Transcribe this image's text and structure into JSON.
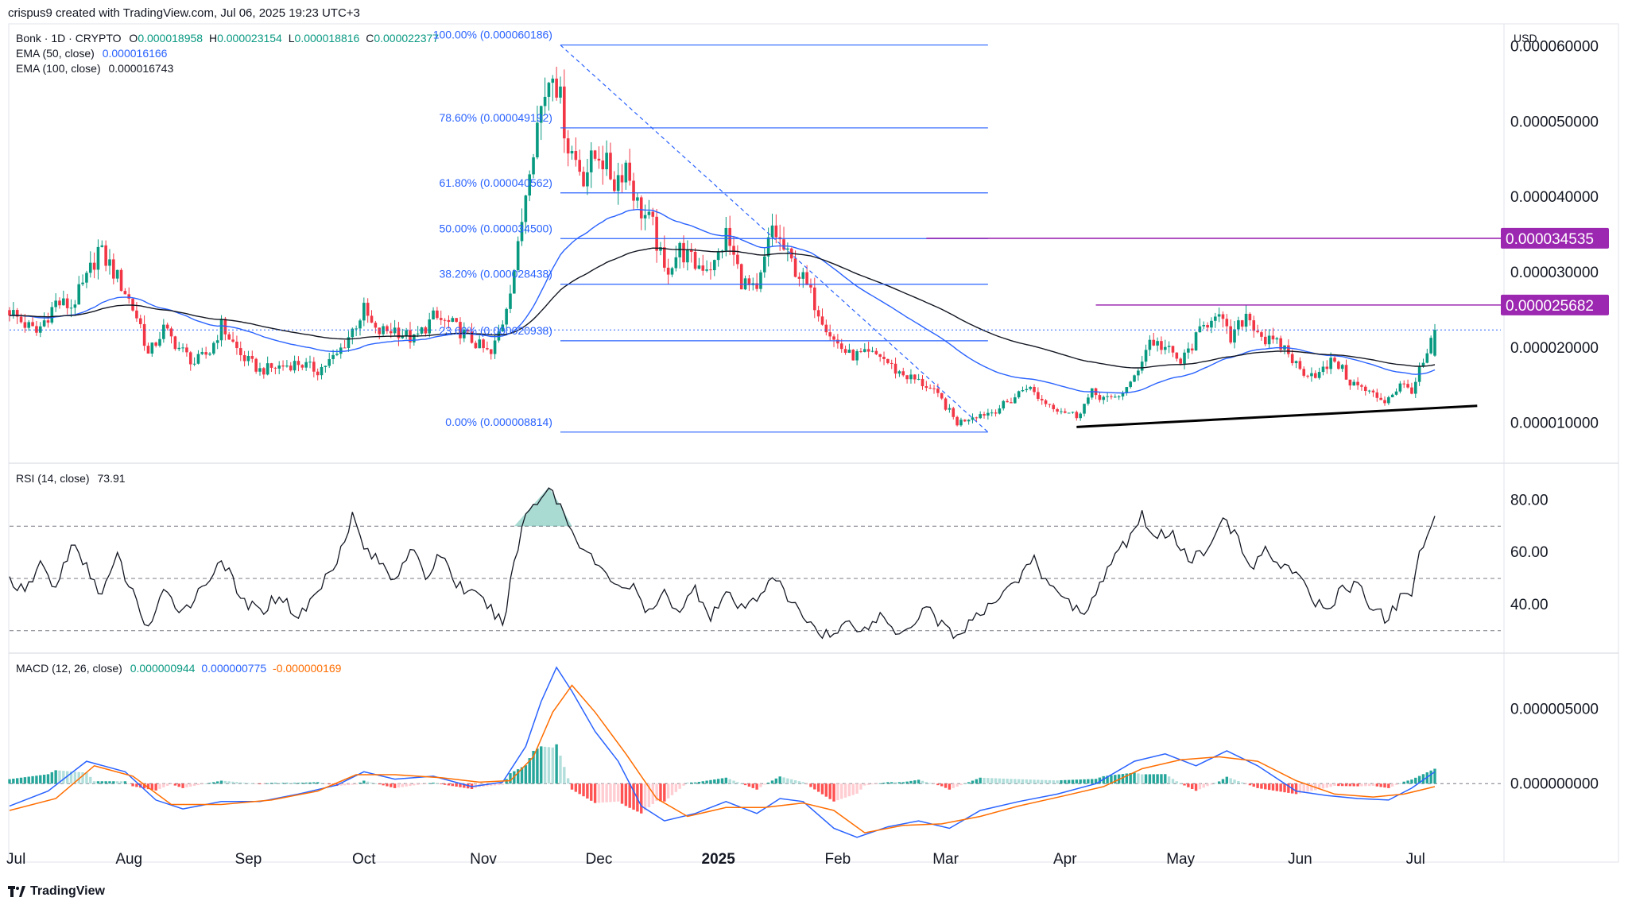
{
  "header": {
    "created_line": "crispus9 created with TradingView.com, Jul 06, 2025 19:23 UTC+3",
    "symbol": "Bonk · 1D · CRYPTO",
    "o_label": "O",
    "o": "0.000018958",
    "h_label": "H",
    "h": "0.000023154",
    "l_label": "L",
    "l": "0.000018816",
    "c_label": "C",
    "c": "0.000022377",
    "ema50_label": "EMA (50, close)",
    "ema50": "0.000016166",
    "ema100_label": "EMA (100, close)",
    "ema100": "0.000016743",
    "currency": "USD"
  },
  "footer": {
    "brand": "TradingView"
  },
  "colors": {
    "up": "#089981",
    "down": "#f23645",
    "ema50": "#2962ff",
    "ema100": "#131722",
    "fib": "#2962ff",
    "magenta": "#9c27b0",
    "macd": "#2962ff",
    "signal": "#ff6d00"
  },
  "chart_data": [
    {
      "type": "candlestick",
      "pane": "price",
      "y_range": [
        5e-06,
        6.3e-05
      ],
      "y_ticks": [
        "0.000060000",
        "0.000050000",
        "0.000040000",
        "0.000030000",
        "0.000020000",
        "0.000010000"
      ],
      "y_tick_values": [
        6e-05,
        5e-05,
        4e-05,
        3e-05,
        2e-05,
        1e-05
      ],
      "x_labels": [
        "Jul",
        "Aug",
        "Sep",
        "Oct",
        "Nov",
        "Dec",
        "2025",
        "Feb",
        "Mar",
        "Apr",
        "May",
        "Jun",
        "Jul"
      ],
      "x_label_days": [
        0,
        31,
        62,
        92,
        123,
        153,
        184,
        215,
        243,
        274,
        304,
        335,
        365
      ],
      "last_day": 370,
      "price_anchors": [
        [
          0,
          2.5e-05
        ],
        [
          3,
          2.35e-05
        ],
        [
          7,
          2.2e-05
        ],
        [
          12,
          2.6e-05
        ],
        [
          16,
          2.55e-05
        ],
        [
          20,
          2.9e-05
        ],
        [
          23,
          3.3e-05
        ],
        [
          26,
          3.1e-05
        ],
        [
          30,
          2.75e-05
        ],
        [
          34,
          2.3e-05
        ],
        [
          36,
          1.9e-05
        ],
        [
          40,
          2.25e-05
        ],
        [
          44,
          2e-05
        ],
        [
          48,
          1.8e-05
        ],
        [
          52,
          1.95e-05
        ],
        [
          55,
          2.3e-05
        ],
        [
          60,
          1.9e-05
        ],
        [
          65,
          1.7e-05
        ],
        [
          70,
          1.75e-05
        ],
        [
          75,
          1.8e-05
        ],
        [
          80,
          1.7e-05
        ],
        [
          85,
          1.9e-05
        ],
        [
          88,
          2.15e-05
        ],
        [
          92,
          2.5e-05
        ],
        [
          95,
          2.2e-05
        ],
        [
          100,
          2.25e-05
        ],
        [
          105,
          2.1e-05
        ],
        [
          110,
          2.4e-05
        ],
        [
          115,
          2.3e-05
        ],
        [
          120,
          2.1e-05
        ],
        [
          125,
          1.9e-05
        ],
        [
          128,
          2.35e-05
        ],
        [
          132,
          3.3e-05
        ],
        [
          135,
          4.5e-05
        ],
        [
          138,
          5.2e-05
        ],
        [
          141,
          5.8e-05
        ],
        [
          145,
          4.7e-05
        ],
        [
          149,
          4.3e-05
        ],
        [
          153,
          4.6e-05
        ],
        [
          157,
          4.2e-05
        ],
        [
          160,
          4.45e-05
        ],
        [
          163,
          3.9e-05
        ],
        [
          167,
          3.6e-05
        ],
        [
          170,
          3e-05
        ],
        [
          174,
          3.3e-05
        ],
        [
          178,
          3.1e-05
        ],
        [
          183,
          3.1e-05
        ],
        [
          186,
          3.5e-05
        ],
        [
          190,
          2.9e-05
        ],
        [
          194,
          2.7e-05
        ],
        [
          198,
          3.6e-05
        ],
        [
          202,
          3.2e-05
        ],
        [
          206,
          2.9e-05
        ],
        [
          210,
          2.5e-05
        ],
        [
          214,
          2.1e-05
        ],
        [
          218,
          1.9e-05
        ],
        [
          222,
          1.9e-05
        ],
        [
          226,
          1.9e-05
        ],
        [
          230,
          1.7e-05
        ],
        [
          234,
          1.6e-05
        ],
        [
          238,
          1.5e-05
        ],
        [
          242,
          1.3e-05
        ],
        [
          246,
          1e-05
        ],
        [
          250,
          1.1e-05
        ],
        [
          255,
          1.15e-05
        ],
        [
          260,
          1.3e-05
        ],
        [
          264,
          1.5e-05
        ],
        [
          268,
          1.3e-05
        ],
        [
          272,
          1.2e-05
        ],
        [
          277,
          1.1e-05
        ],
        [
          281,
          1.4e-05
        ],
        [
          286,
          1.3e-05
        ],
        [
          291,
          1.5e-05
        ],
        [
          296,
          2.1e-05
        ],
        [
          300,
          2e-05
        ],
        [
          304,
          1.8e-05
        ],
        [
          309,
          2.2e-05
        ],
        [
          313,
          2.5e-05
        ],
        [
          317,
          2.1e-05
        ],
        [
          321,
          2.45e-05
        ],
        [
          326,
          2.1e-05
        ],
        [
          331,
          2e-05
        ],
        [
          335,
          1.7e-05
        ],
        [
          340,
          1.65e-05
        ],
        [
          344,
          1.85e-05
        ],
        [
          348,
          1.55e-05
        ],
        [
          353,
          1.4e-05
        ],
        [
          357,
          1.3e-05
        ],
        [
          361,
          1.5e-05
        ],
        [
          364,
          1.45e-05
        ],
        [
          368,
          1.9e-05
        ],
        [
          370,
          2.24e-05
        ]
      ],
      "last_candle": {
        "open": 1.8958e-05,
        "high": 2.3154e-05,
        "low": 1.8816e-05,
        "close": 2.2377e-05
      },
      "ema50_last": 1.6166e-05,
      "ema100_last": 1.6743e-05,
      "fibonacci": {
        "start_day": 143,
        "end_day": 254,
        "high": 6.0186e-05,
        "low": 8.814e-06,
        "levels": [
          {
            "label": "100.00% (0.000060186)",
            "value": 6.0186e-05
          },
          {
            "label": "78.60% (0.000049192)",
            "value": 4.9192e-05
          },
          {
            "label": "61.80% (0.000040562)",
            "value": 4.0562e-05
          },
          {
            "label": "50.00% (0.000034500)",
            "value": 3.45e-05
          },
          {
            "label": "38.20% (0.000028438)",
            "value": 2.8438e-05
          },
          {
            "label": "23.60% (0.000020938)",
            "value": 2.0938e-05
          },
          {
            "label": "0.00% (0.000008814)",
            "value": 8.814e-06
          }
        ]
      },
      "horizontal_lines": [
        {
          "label": "0.000034535",
          "value": 3.4535e-05,
          "start_day": 238
        },
        {
          "label": "0.000025682",
          "value": 2.5682e-05,
          "start_day": 282
        }
      ],
      "trendline": {
        "day1": 277,
        "value1": 9.5e-06,
        "day2": 381,
        "value2": 1.23e-05
      }
    },
    {
      "type": "line",
      "pane": "rsi",
      "title": "RSI (14, close)",
      "current": "73.91",
      "y_range": [
        22,
        92
      ],
      "y_ticks": [
        "80.00",
        "60.00",
        "40.00"
      ],
      "y_tick_values": [
        80,
        60,
        40
      ],
      "bands": [
        70,
        50,
        30
      ],
      "points": [
        [
          0,
          50
        ],
        [
          4,
          44
        ],
        [
          8,
          56
        ],
        [
          12,
          46
        ],
        [
          16,
          63
        ],
        [
          20,
          54
        ],
        [
          24,
          44
        ],
        [
          28,
          58
        ],
        [
          32,
          44
        ],
        [
          36,
          31
        ],
        [
          40,
          44
        ],
        [
          45,
          38
        ],
        [
          50,
          46
        ],
        [
          55,
          58
        ],
        [
          60,
          42
        ],
        [
          65,
          37
        ],
        [
          70,
          44
        ],
        [
          75,
          35
        ],
        [
          80,
          45
        ],
        [
          85,
          58
        ],
        [
          89,
          74
        ],
        [
          92,
          62
        ],
        [
          96,
          56
        ],
        [
          100,
          50
        ],
        [
          104,
          62
        ],
        [
          108,
          50
        ],
        [
          112,
          60
        ],
        [
          116,
          48
        ],
        [
          120,
          44
        ],
        [
          124,
          40
        ],
        [
          128,
          32
        ],
        [
          131,
          56
        ],
        [
          134,
          75
        ],
        [
          137,
          80
        ],
        [
          140,
          85
        ],
        [
          143,
          78
        ],
        [
          146,
          68
        ],
        [
          150,
          60
        ],
        [
          154,
          52
        ],
        [
          158,
          48
        ],
        [
          162,
          46
        ],
        [
          166,
          36
        ],
        [
          170,
          44
        ],
        [
          174,
          38
        ],
        [
          178,
          46
        ],
        [
          182,
          36
        ],
        [
          186,
          44
        ],
        [
          190,
          38
        ],
        [
          194,
          42
        ],
        [
          198,
          52
        ],
        [
          202,
          42
        ],
        [
          206,
          36
        ],
        [
          210,
          30
        ],
        [
          214,
          28
        ],
        [
          218,
          34
        ],
        [
          222,
          30
        ],
        [
          226,
          36
        ],
        [
          230,
          30
        ],
        [
          234,
          32
        ],
        [
          238,
          40
        ],
        [
          242,
          32
        ],
        [
          246,
          28
        ],
        [
          250,
          34
        ],
        [
          254,
          38
        ],
        [
          258,
          46
        ],
        [
          262,
          50
        ],
        [
          266,
          57
        ],
        [
          270,
          46
        ],
        [
          274,
          44
        ],
        [
          278,
          36
        ],
        [
          282,
          44
        ],
        [
          286,
          56
        ],
        [
          290,
          64
        ],
        [
          294,
          74
        ],
        [
          298,
          66
        ],
        [
          302,
          68
        ],
        [
          306,
          57
        ],
        [
          310,
          60
        ],
        [
          314,
          72
        ],
        [
          318,
          68
        ],
        [
          322,
          54
        ],
        [
          326,
          60
        ],
        [
          330,
          56
        ],
        [
          334,
          52
        ],
        [
          338,
          42
        ],
        [
          342,
          38
        ],
        [
          346,
          46
        ],
        [
          350,
          48
        ],
        [
          354,
          38
        ],
        [
          358,
          34
        ],
        [
          362,
          46
        ],
        [
          364,
          44
        ],
        [
          366,
          58
        ],
        [
          368,
          66
        ],
        [
          370,
          74
        ]
      ]
    },
    {
      "type": "bar+line",
      "pane": "macd",
      "title": "MACD (12, 26, close)",
      "histogram_value": "0.000000944",
      "macd_value": "0.000000775",
      "signal_value": "-0.000000169",
      "y_range": [
        -4.2e-06,
        8.6e-06
      ],
      "y_ticks": [
        "0.000005000",
        "0.000000000"
      ],
      "y_tick_values": [
        5e-06,
        0.0
      ],
      "macd_points": [
        [
          0,
          -1.5e-06
        ],
        [
          10,
          -5e-07
        ],
        [
          20,
          1.5e-06
        ],
        [
          30,
          8e-07
        ],
        [
          38,
          -1.1e-06
        ],
        [
          45,
          -1.7e-06
        ],
        [
          55,
          -1.2e-06
        ],
        [
          65,
          -1.2e-06
        ],
        [
          75,
          -7e-07
        ],
        [
          85,
          -1e-07
        ],
        [
          92,
          8e-07
        ],
        [
          100,
          3e-07
        ],
        [
          110,
          5e-07
        ],
        [
          120,
          -2e-07
        ],
        [
          128,
          1e-07
        ],
        [
          134,
          2.5e-06
        ],
        [
          138,
          5.5e-06
        ],
        [
          142,
          7.8e-06
        ],
        [
          146,
          6.2e-06
        ],
        [
          152,
          3.5e-06
        ],
        [
          158,
          1.5e-06
        ],
        [
          164,
          -1.5e-06
        ],
        [
          170,
          -2.5e-06
        ],
        [
          178,
          -2e-06
        ],
        [
          186,
          -1.2e-06
        ],
        [
          194,
          -2e-06
        ],
        [
          200,
          -1e-06
        ],
        [
          206,
          -1.2e-06
        ],
        [
          214,
          -3e-06
        ],
        [
          220,
          -3.6e-06
        ],
        [
          228,
          -2.9e-06
        ],
        [
          236,
          -2.5e-06
        ],
        [
          244,
          -3e-06
        ],
        [
          252,
          -1.8e-06
        ],
        [
          262,
          -1.2e-06
        ],
        [
          272,
          -7e-07
        ],
        [
          282,
          0.0
        ],
        [
          292,
          1.5e-06
        ],
        [
          300,
          2e-06
        ],
        [
          308,
          1.2e-06
        ],
        [
          316,
          2.2e-06
        ],
        [
          324,
          1.2e-06
        ],
        [
          334,
          -5e-07
        ],
        [
          342,
          -8e-07
        ],
        [
          350,
          -1e-06
        ],
        [
          358,
          -1.1e-06
        ],
        [
          364,
          -3e-07
        ],
        [
          370,
          8e-07
        ]
      ],
      "signal_points": [
        [
          0,
          -1.8e-06
        ],
        [
          12,
          -1e-06
        ],
        [
          22,
          1.2e-06
        ],
        [
          32,
          5e-07
        ],
        [
          42,
          -1.4e-06
        ],
        [
          55,
          -1.4e-06
        ],
        [
          68,
          -1.1e-06
        ],
        [
          80,
          -5e-07
        ],
        [
          90,
          6e-07
        ],
        [
          100,
          6e-07
        ],
        [
          112,
          4e-07
        ],
        [
          122,
          1e-07
        ],
        [
          130,
          2e-07
        ],
        [
          136,
          1.8e-06
        ],
        [
          141,
          4.8e-06
        ],
        [
          146,
          6.6e-06
        ],
        [
          152,
          4.8e-06
        ],
        [
          160,
          2e-06
        ],
        [
          168,
          -1e-06
        ],
        [
          176,
          -2.2e-06
        ],
        [
          186,
          -1.6e-06
        ],
        [
          196,
          -1.6e-06
        ],
        [
          206,
          -1.3e-06
        ],
        [
          214,
          -1.8e-06
        ],
        [
          222,
          -3.3e-06
        ],
        [
          232,
          -2.8e-06
        ],
        [
          242,
          -2.7e-06
        ],
        [
          252,
          -2.2e-06
        ],
        [
          262,
          -1.5e-06
        ],
        [
          274,
          -8e-07
        ],
        [
          284,
          -2e-07
        ],
        [
          294,
          1e-06
        ],
        [
          304,
          1.6e-06
        ],
        [
          314,
          1.8e-06
        ],
        [
          324,
          1.5e-06
        ],
        [
          334,
          2e-07
        ],
        [
          344,
          -7e-07
        ],
        [
          354,
          -9e-07
        ],
        [
          362,
          -7e-07
        ],
        [
          370,
          -2e-07
        ]
      ]
    }
  ]
}
